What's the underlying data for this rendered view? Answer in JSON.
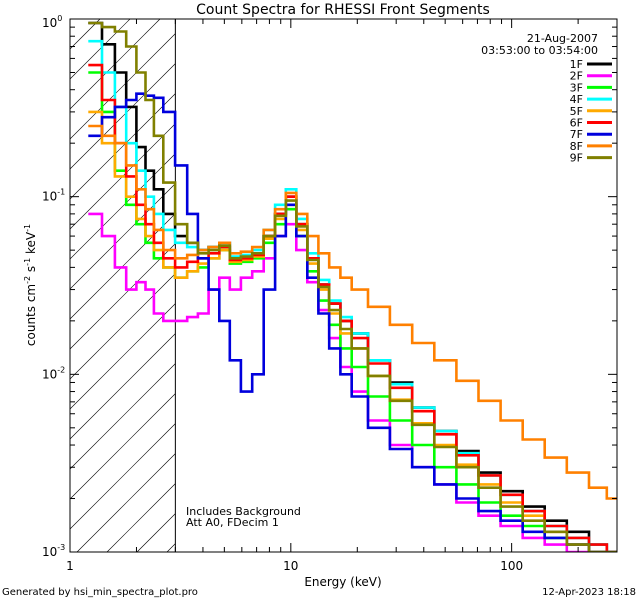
{
  "chart_data": {
    "type": "line",
    "title": "Count Spectra for RHESSI Front Segments",
    "xlabel": "Energy (keV)",
    "ylabel": "counts cm^-2 s^-1 keV^-1",
    "xscale": "log",
    "yscale": "log",
    "xlim": [
      1.0,
      300.0
    ],
    "ylim": [
      0.001,
      1.0
    ],
    "x_ticks": [
      {
        "value": 1,
        "label": "1"
      },
      {
        "value": 10,
        "label": "10"
      },
      {
        "value": 100,
        "label": "100"
      }
    ],
    "y_ticks": [
      {
        "value": 1,
        "base": "10",
        "exp": "0"
      },
      {
        "value": 0.1,
        "base": "10",
        "exp": "-1"
      },
      {
        "value": 0.01,
        "base": "10",
        "exp": "-2"
      },
      {
        "value": 0.001,
        "base": "10",
        "exp": "-3"
      }
    ],
    "shaded_region_kev": [
      1.0,
      3.0
    ],
    "legend": {
      "position": "top-right",
      "date": "21-Aug-2007",
      "time_range": "03:53:00 to 03:54:00"
    },
    "annotations": [
      "Includes Background",
      "Att A0, FDecim 1"
    ],
    "series": [
      {
        "name": "1F",
        "color": "#000000",
        "x": [
          1.3,
          1.5,
          1.7,
          1.9,
          2.1,
          2.3,
          2.5,
          2.8,
          3.2,
          3.6,
          4.0,
          4.5,
          5.0,
          5.6,
          6.3,
          7.1,
          8.0,
          9.0,
          10.0,
          11.2,
          12.6,
          14.1,
          15.8,
          17.8,
          20.0,
          25.0,
          31.6,
          39.8,
          50.1,
          63.1,
          79.4,
          100,
          126,
          158,
          200,
          251,
          290
        ],
        "y": [
          0.95,
          0.72,
          0.5,
          0.32,
          0.19,
          0.14,
          0.11,
          0.08,
          0.06,
          0.055,
          0.05,
          0.052,
          0.055,
          0.045,
          0.046,
          0.047,
          0.06,
          0.08,
          0.1,
          0.07,
          0.045,
          0.032,
          0.025,
          0.02,
          0.017,
          0.012,
          0.009,
          0.0065,
          0.0048,
          0.0037,
          0.0028,
          0.0022,
          0.0018,
          0.0015,
          0.0013,
          0.0011,
          0.001
        ]
      },
      {
        "name": "2F",
        "color": "#ff00ff",
        "x": [
          1.3,
          1.5,
          1.7,
          1.9,
          2.1,
          2.3,
          2.5,
          2.8,
          3.2,
          3.6,
          4.0,
          4.5,
          5.0,
          5.6,
          6.3,
          7.1,
          8.0,
          9.0,
          10.0,
          11.2,
          12.6,
          14.1,
          15.8,
          17.8,
          20.0,
          25.0,
          31.6,
          39.8,
          50.1,
          63.1,
          79.4,
          100,
          126,
          158,
          200,
          251,
          290
        ],
        "y": [
          0.08,
          0.06,
          0.04,
          0.03,
          0.033,
          0.03,
          0.022,
          0.02,
          0.02,
          0.021,
          0.022,
          0.03,
          0.035,
          0.03,
          0.035,
          0.038,
          0.045,
          0.06,
          0.07,
          0.05,
          0.033,
          0.023,
          0.016,
          0.011,
          0.008,
          0.0055,
          0.004,
          0.003,
          0.0024,
          0.0019,
          0.0016,
          0.0014,
          0.0012,
          0.0011,
          0.001,
          0.001,
          0.001
        ]
      },
      {
        "name": "3F",
        "color": "#00ff00",
        "x": [
          1.3,
          1.5,
          1.7,
          1.9,
          2.1,
          2.3,
          2.5,
          2.8,
          3.2,
          3.6,
          4.0,
          4.5,
          5.0,
          5.6,
          6.3,
          7.1,
          8.0,
          9.0,
          10.0,
          11.2,
          12.6,
          14.1,
          15.8,
          17.8,
          20.0,
          25.0,
          31.6,
          39.8,
          50.1,
          63.1,
          79.4,
          100,
          126,
          158,
          200,
          251,
          290
        ],
        "y": [
          0.5,
          0.3,
          0.14,
          0.09,
          0.07,
          0.055,
          0.045,
          0.04,
          0.035,
          0.038,
          0.04,
          0.045,
          0.05,
          0.042,
          0.043,
          0.045,
          0.055,
          0.07,
          0.085,
          0.06,
          0.038,
          0.026,
          0.019,
          0.014,
          0.011,
          0.0075,
          0.0055,
          0.004,
          0.003,
          0.0024,
          0.0019,
          0.0016,
          0.0014,
          0.0012,
          0.0011,
          0.001,
          0.001
        ]
      },
      {
        "name": "4F",
        "color": "#00ffff",
        "x": [
          1.3,
          1.5,
          1.7,
          1.9,
          2.1,
          2.3,
          2.5,
          2.8,
          3.2,
          3.6,
          4.0,
          4.5,
          5.0,
          5.6,
          6.3,
          7.1,
          8.0,
          9.0,
          10.0,
          11.2,
          12.6,
          14.1,
          15.8,
          17.8,
          20.0,
          25.0,
          31.6,
          39.8,
          50.1,
          63.1,
          79.4,
          100,
          126,
          158,
          200,
          251,
          290
        ],
        "y": [
          0.75,
          0.5,
          0.32,
          0.2,
          0.14,
          0.1,
          0.08,
          0.065,
          0.055,
          0.052,
          0.05,
          0.052,
          0.055,
          0.046,
          0.047,
          0.05,
          0.065,
          0.09,
          0.11,
          0.075,
          0.048,
          0.034,
          0.026,
          0.021,
          0.017,
          0.012,
          0.0088,
          0.0065,
          0.0048,
          0.0036,
          0.0027,
          0.0021,
          0.0017,
          0.0014,
          0.0012,
          0.0011,
          0.001
        ]
      },
      {
        "name": "5F",
        "color": "#ffaa00",
        "x": [
          1.3,
          1.5,
          1.7,
          1.9,
          2.1,
          2.3,
          2.5,
          2.8,
          3.2,
          3.6,
          4.0,
          4.5,
          5.0,
          5.6,
          6.3,
          7.1,
          8.0,
          9.0,
          10.0,
          11.2,
          12.6,
          14.1,
          15.8,
          17.8,
          20.0,
          25.0,
          31.6,
          39.8,
          50.1,
          63.1,
          79.4,
          100,
          126,
          158,
          200,
          251,
          290
        ],
        "y": [
          0.3,
          0.2,
          0.13,
          0.1,
          0.075,
          0.06,
          0.05,
          0.04,
          0.035,
          0.038,
          0.042,
          0.045,
          0.05,
          0.043,
          0.044,
          0.046,
          0.058,
          0.075,
          0.09,
          0.065,
          0.042,
          0.03,
          0.022,
          0.017,
          0.014,
          0.0098,
          0.0072,
          0.0053,
          0.004,
          0.0031,
          0.0024,
          0.0019,
          0.0016,
          0.0013,
          0.0011,
          0.001,
          0.001
        ]
      },
      {
        "name": "6F",
        "color": "#ff0000",
        "x": [
          1.3,
          1.5,
          1.7,
          1.9,
          2.1,
          2.3,
          2.5,
          2.8,
          3.2,
          3.6,
          4.0,
          4.5,
          5.0,
          5.6,
          6.3,
          7.1,
          8.0,
          9.0,
          10.0,
          11.2,
          12.6,
          14.1,
          15.8,
          17.8,
          20.0,
          25.0,
          31.6,
          39.8,
          50.1,
          63.1,
          79.4,
          100,
          126,
          158,
          200,
          251,
          290
        ],
        "y": [
          0.55,
          0.35,
          0.2,
          0.13,
          0.09,
          0.07,
          0.055,
          0.045,
          0.04,
          0.043,
          0.045,
          0.048,
          0.052,
          0.044,
          0.045,
          0.047,
          0.06,
          0.08,
          0.1,
          0.07,
          0.045,
          0.032,
          0.025,
          0.02,
          0.016,
          0.0115,
          0.0084,
          0.0062,
          0.0046,
          0.0035,
          0.0027,
          0.0021,
          0.0017,
          0.0014,
          0.0012,
          0.0011,
          0.001
        ]
      },
      {
        "name": "7F",
        "color": "#0000dd",
        "x": [
          1.3,
          1.5,
          1.7,
          1.9,
          2.1,
          2.3,
          2.5,
          2.8,
          3.2,
          3.6,
          4.0,
          4.5,
          5.0,
          5.6,
          6.3,
          7.1,
          8.0,
          9.0,
          10.0,
          11.2,
          12.6,
          14.1,
          15.8,
          17.8,
          20.0,
          25.0,
          31.6,
          39.8,
          50.1,
          63.1,
          79.4,
          100,
          126,
          158,
          200,
          251,
          290
        ],
        "y": [
          0.22,
          0.28,
          0.32,
          0.35,
          0.38,
          0.37,
          0.36,
          0.3,
          0.15,
          0.08,
          0.045,
          0.03,
          0.02,
          0.012,
          0.008,
          0.01,
          0.03,
          0.06,
          0.09,
          0.06,
          0.035,
          0.022,
          0.014,
          0.01,
          0.0075,
          0.005,
          0.0038,
          0.003,
          0.0024,
          0.002,
          0.0017,
          0.0015,
          0.0013,
          0.0012,
          0.0011,
          0.001,
          0.001
        ]
      },
      {
        "name": "8F",
        "color": "#ff8000",
        "x": [
          1.3,
          1.5,
          1.7,
          1.9,
          2.1,
          2.3,
          2.5,
          2.8,
          3.2,
          3.6,
          4.0,
          4.5,
          5.0,
          5.6,
          6.3,
          7.1,
          8.0,
          9.0,
          10.0,
          11.2,
          12.6,
          14.1,
          15.8,
          17.8,
          20.0,
          25.0,
          31.6,
          39.8,
          50.1,
          63.1,
          79.4,
          100,
          126,
          158,
          200,
          251,
          290
        ],
        "y": [
          0.25,
          0.22,
          0.2,
          0.15,
          0.11,
          0.085,
          0.065,
          0.05,
          0.045,
          0.047,
          0.05,
          0.052,
          0.055,
          0.048,
          0.049,
          0.052,
          0.065,
          0.085,
          0.105,
          0.08,
          0.06,
          0.048,
          0.04,
          0.035,
          0.03,
          0.024,
          0.019,
          0.015,
          0.012,
          0.0092,
          0.0071,
          0.0055,
          0.0043,
          0.0034,
          0.0028,
          0.0023,
          0.002
        ]
      },
      {
        "name": "9F",
        "color": "#808000",
        "x": [
          1.3,
          1.5,
          1.7,
          1.9,
          2.1,
          2.3,
          2.5,
          2.8,
          3.2,
          3.6,
          4.0,
          4.5,
          5.0,
          5.6,
          6.3,
          7.1,
          8.0,
          9.0,
          10.0,
          11.2,
          12.6,
          14.1,
          15.8,
          17.8,
          20.0,
          25.0,
          31.6,
          39.8,
          50.1,
          63.1,
          79.4,
          100,
          126,
          158,
          200,
          251,
          290
        ],
        "y": [
          0.95,
          0.9,
          0.85,
          0.7,
          0.5,
          0.35,
          0.22,
          0.12,
          0.07,
          0.055,
          0.048,
          0.05,
          0.053,
          0.045,
          0.046,
          0.048,
          0.06,
          0.078,
          0.095,
          0.068,
          0.044,
          0.031,
          0.023,
          0.018,
          0.014,
          0.0098,
          0.0071,
          0.0052,
          0.0039,
          0.003,
          0.0023,
          0.0018,
          0.0015,
          0.0013,
          0.0011,
          0.001,
          0.001
        ]
      }
    ]
  },
  "footer": {
    "generated_by": "Generated by hsi_min_spectra_plot.pro",
    "timestamp": "12-Apr-2023 18:18"
  }
}
